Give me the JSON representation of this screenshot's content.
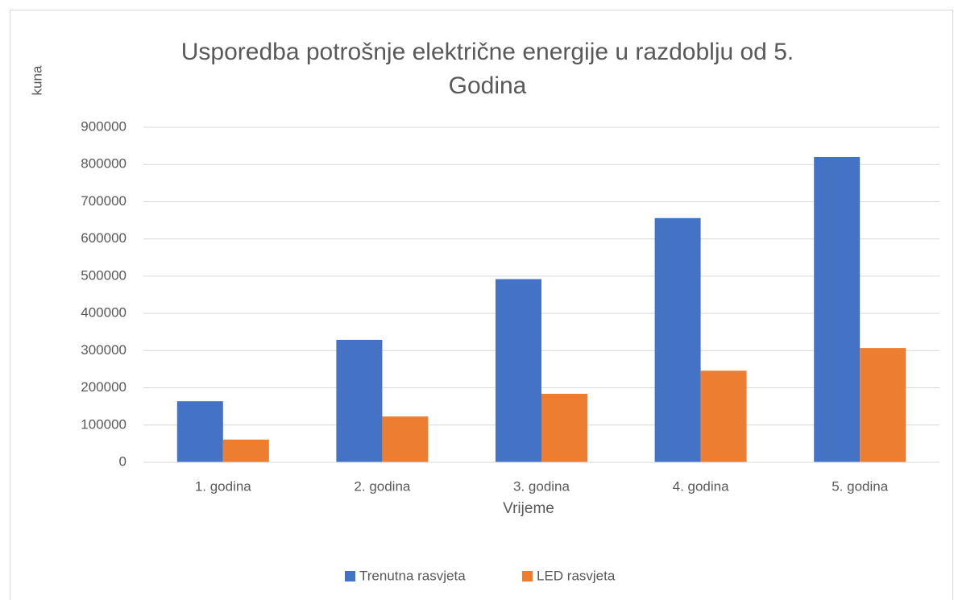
{
  "chart_data": {
    "type": "bar",
    "title": "Usporedba potrošnje električne energije u razdoblju od 5. Godina",
    "y_label": "kuna",
    "x_label": "Vrijeme",
    "categories": [
      "1. godina",
      "2. godina",
      "3. godina",
      "4. godina",
      "5. godina"
    ],
    "series": [
      {
        "name": "Trenutna rasvjeta",
        "color": "#4472c4",
        "values": [
          164000,
          329000,
          492000,
          656000,
          820000
        ]
      },
      {
        "name": "LED rasvjeta",
        "color": "#ed7d31",
        "values": [
          61000,
          123000,
          184000,
          246000,
          307000
        ]
      }
    ],
    "ylim": [
      0,
      900000
    ],
    "yticks": [
      0,
      100000,
      200000,
      300000,
      400000,
      500000,
      600000,
      700000,
      800000,
      900000
    ],
    "grid": true,
    "legend": "bottom"
  }
}
